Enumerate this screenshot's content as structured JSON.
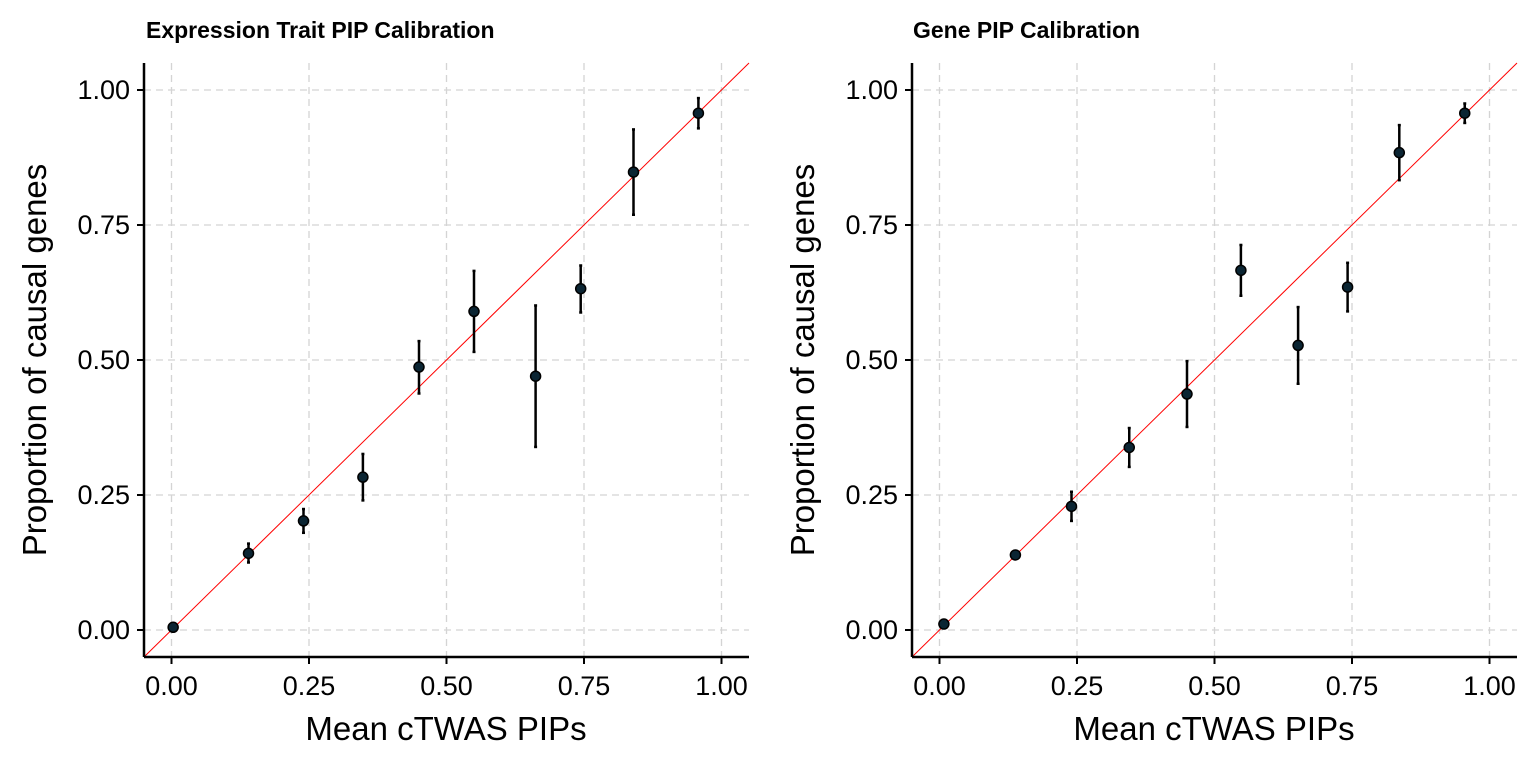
{
  "chart_data": [
    {
      "type": "scatter",
      "title": "Expression Trait PIP Calibration",
      "xlabel": "Mean cTWAS PIPs",
      "ylabel": "Proportion of causal genes",
      "xlim": [
        -0.05,
        1.05
      ],
      "ylim": [
        -0.05,
        1.05
      ],
      "xticks": [
        "0.00",
        "0.25",
        "0.50",
        "0.75",
        "1.00"
      ],
      "yticks": [
        "0.00",
        "0.25",
        "0.50",
        "0.75",
        "1.00"
      ],
      "grid": true,
      "reference_line": "y = x",
      "reference_color": "#ff0000",
      "point_color": "#0b2533",
      "points": [
        {
          "x": 0.003,
          "y": 0.005,
          "ymin": 0.003,
          "ymax": 0.007
        },
        {
          "x": 0.14,
          "y": 0.142,
          "ymin": 0.125,
          "ymax": 0.16
        },
        {
          "x": 0.24,
          "y": 0.202,
          "ymin": 0.18,
          "ymax": 0.224
        },
        {
          "x": 0.348,
          "y": 0.283,
          "ymin": 0.24,
          "ymax": 0.326
        },
        {
          "x": 0.45,
          "y": 0.487,
          "ymin": 0.438,
          "ymax": 0.535
        },
        {
          "x": 0.55,
          "y": 0.59,
          "ymin": 0.515,
          "ymax": 0.665
        },
        {
          "x": 0.662,
          "y": 0.47,
          "ymin": 0.339,
          "ymax": 0.601
        },
        {
          "x": 0.744,
          "y": 0.632,
          "ymin": 0.588,
          "ymax": 0.675
        },
        {
          "x": 0.84,
          "y": 0.848,
          "ymin": 0.769,
          "ymax": 0.927
        },
        {
          "x": 0.958,
          "y": 0.957,
          "ymin": 0.929,
          "ymax": 0.985
        }
      ]
    },
    {
      "type": "scatter",
      "title": "Gene PIP Calibration",
      "xlabel": "Mean cTWAS PIPs",
      "ylabel": "Proportion of causal genes",
      "xlim": [
        -0.05,
        1.05
      ],
      "ylim": [
        -0.05,
        1.05
      ],
      "xticks": [
        "0.00",
        "0.25",
        "0.50",
        "0.75",
        "1.00"
      ],
      "yticks": [
        "0.00",
        "0.25",
        "0.50",
        "0.75",
        "1.00"
      ],
      "grid": true,
      "reference_line": "y = x",
      "reference_color": "#ff0000",
      "point_color": "#0b2533",
      "points": [
        {
          "x": 0.008,
          "y": 0.011,
          "ymin": 0.008,
          "ymax": 0.014
        },
        {
          "x": 0.138,
          "y": 0.139,
          "ymin": 0.134,
          "ymax": 0.144
        },
        {
          "x": 0.24,
          "y": 0.229,
          "ymin": 0.202,
          "ymax": 0.256
        },
        {
          "x": 0.345,
          "y": 0.338,
          "ymin": 0.302,
          "ymax": 0.374
        },
        {
          "x": 0.45,
          "y": 0.437,
          "ymin": 0.376,
          "ymax": 0.498
        },
        {
          "x": 0.548,
          "y": 0.666,
          "ymin": 0.619,
          "ymax": 0.713
        },
        {
          "x": 0.652,
          "y": 0.527,
          "ymin": 0.456,
          "ymax": 0.598
        },
        {
          "x": 0.742,
          "y": 0.635,
          "ymin": 0.59,
          "ymax": 0.68
        },
        {
          "x": 0.836,
          "y": 0.884,
          "ymin": 0.833,
          "ymax": 0.935
        },
        {
          "x": 0.955,
          "y": 0.957,
          "ymin": 0.939,
          "ymax": 0.975
        }
      ]
    }
  ]
}
